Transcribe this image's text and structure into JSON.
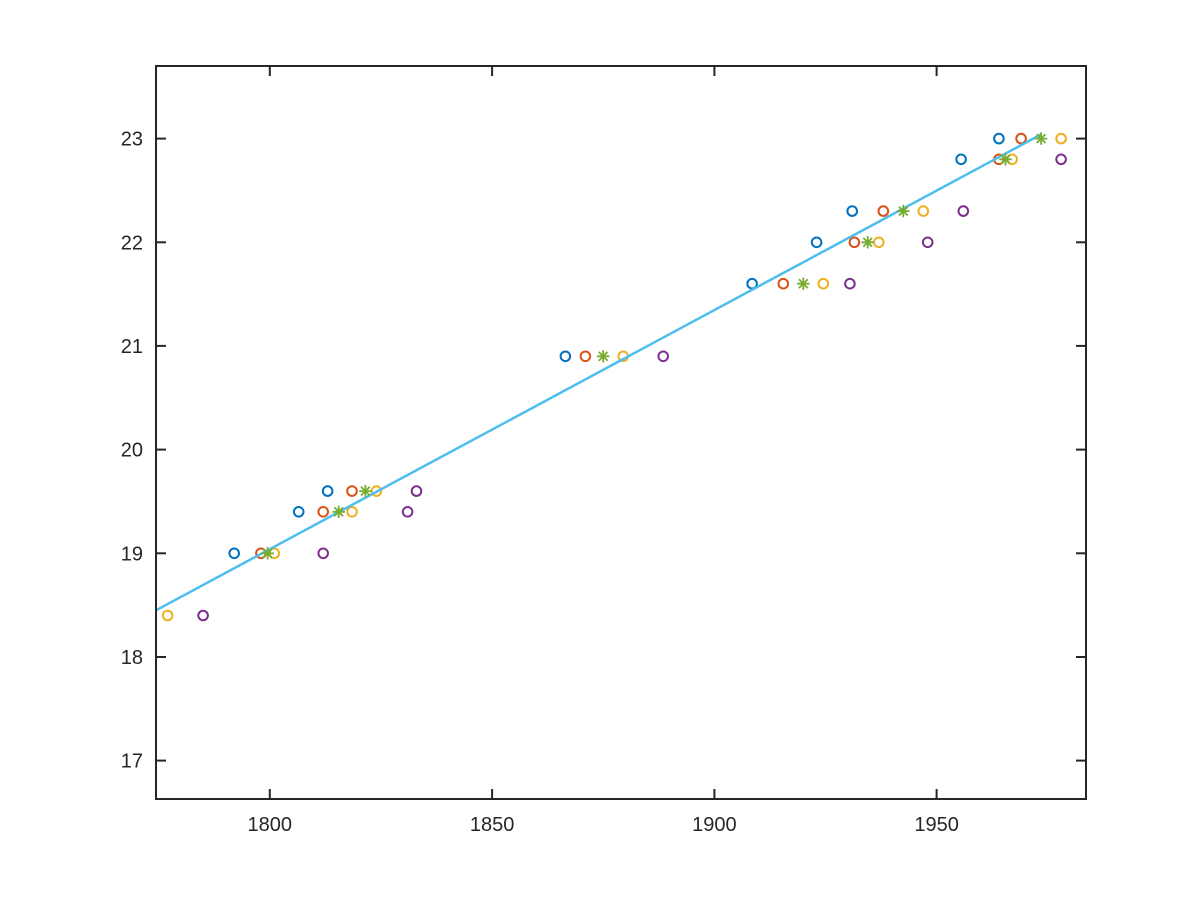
{
  "chart_data": {
    "type": "scatter",
    "title": "",
    "xlabel": "",
    "ylabel": "",
    "xlim": [
      1774.4,
      1983.6
    ],
    "ylim": [
      16.63,
      23.7
    ],
    "xticks": [
      1800,
      1850,
      1900,
      1950
    ],
    "yticks": [
      17,
      18,
      19,
      20,
      21,
      22,
      23
    ],
    "grid": false,
    "legend": false,
    "background": "#ffffff",
    "axis_color": "#262626",
    "series": [
      {
        "name": "blue-circles",
        "marker": "circle",
        "color": "#0072BD",
        "points": [
          [
            1792,
            19.0
          ],
          [
            1806.5,
            19.4
          ],
          [
            1813,
            19.6
          ],
          [
            1866.5,
            20.9
          ],
          [
            1908.5,
            21.6
          ],
          [
            1923,
            22.0
          ],
          [
            1931,
            22.3
          ],
          [
            1955.5,
            22.8
          ],
          [
            1964,
            23.0
          ]
        ]
      },
      {
        "name": "orange-circles",
        "marker": "circle",
        "color": "#D95319",
        "points": [
          [
            1798,
            19.0
          ],
          [
            1812,
            19.4
          ],
          [
            1818.5,
            19.6
          ],
          [
            1871,
            20.9
          ],
          [
            1915.5,
            21.6
          ],
          [
            1931.5,
            22.0
          ],
          [
            1938,
            22.3
          ],
          [
            1964,
            22.8
          ],
          [
            1969,
            23.0
          ]
        ]
      },
      {
        "name": "green-asterisks",
        "marker": "asterisk",
        "color": "#77AC30",
        "points": [
          [
            1799.5,
            19.0
          ],
          [
            1815.5,
            19.4
          ],
          [
            1821.5,
            19.6
          ],
          [
            1875,
            20.9
          ],
          [
            1920,
            21.6
          ],
          [
            1934.5,
            22.0
          ],
          [
            1942.5,
            22.3
          ],
          [
            1965.5,
            22.8
          ],
          [
            1973.5,
            23.0
          ]
        ]
      },
      {
        "name": "yellow-circles",
        "marker": "circle",
        "color": "#EDB120",
        "points": [
          [
            1777,
            18.4
          ],
          [
            1801,
            19.0
          ],
          [
            1818.5,
            19.4
          ],
          [
            1824,
            19.6
          ],
          [
            1879.5,
            20.9
          ],
          [
            1924.5,
            21.6
          ],
          [
            1937,
            22.0
          ],
          [
            1947,
            22.3
          ],
          [
            1967,
            22.8
          ],
          [
            1978,
            23.0
          ]
        ]
      },
      {
        "name": "purple-circles",
        "marker": "circle",
        "color": "#7E2F8E",
        "points": [
          [
            1785,
            18.4
          ],
          [
            1812,
            19.0
          ],
          [
            1831,
            19.4
          ],
          [
            1833,
            19.6
          ],
          [
            1888.5,
            20.9
          ],
          [
            1930.5,
            21.6
          ],
          [
            1948,
            22.0
          ],
          [
            1956,
            22.3
          ],
          [
            1978,
            22.8
          ]
        ]
      }
    ],
    "fit_line": {
      "name": "linear-fit-line",
      "color": "#4DBEEE",
      "points": [
        [
          1774.4,
          18.45
        ],
        [
          1973.5,
          23.04
        ]
      ]
    }
  }
}
